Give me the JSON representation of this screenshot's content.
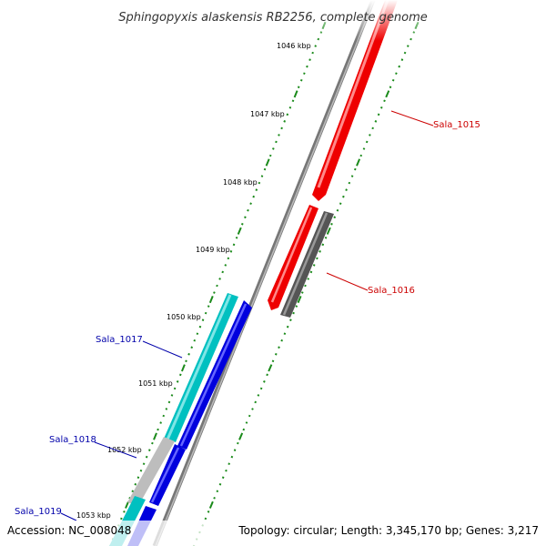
{
  "title": "Sphingopyxis alaskensis RB2256, complete genome",
  "footer": {
    "accession": "Accession: NC_008048",
    "summary": "Topology: circular; Length: 3,345,170 bp; Genes: 3,217"
  },
  "ticks": [
    "1046 kbp",
    "1047 kbp",
    "1048 kbp",
    "1049 kbp",
    "1050 kbp",
    "1051 kbp",
    "1052 kbp",
    "1053 kbp"
  ],
  "genes": [
    {
      "name": "Sala_1015",
      "color": "#cc0000"
    },
    {
      "name": "Sala_1016",
      "color": "#cc0000"
    },
    {
      "name": "Sala_1017",
      "color": "#0000aa"
    },
    {
      "name": "Sala_1018",
      "color": "#0000aa"
    },
    {
      "name": "Sala_1019",
      "color": "#0000aa"
    }
  ],
  "colors": {
    "forward_cds": "#ff0000",
    "forward_other": "#666666",
    "reverse_cds": "#0000ee",
    "reverse_other": "#00c8c8",
    "reverse_other_grey": "#bbbbbb",
    "backbone": "#777777",
    "tick": "#1a8a1a"
  }
}
